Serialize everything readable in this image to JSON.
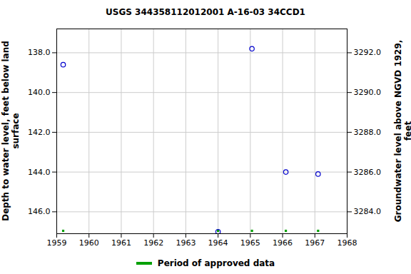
{
  "chart_data": {
    "type": "scatter",
    "title": "USGS 344358112012001 A-16-03 34CCD1",
    "ylabel": "Depth to water level, feet below land surface",
    "y2label": "Groundwater level above NGVD 1929, feet",
    "x": [
      1959.2,
      1964.0,
      1965.05,
      1966.1,
      1967.1
    ],
    "values": [
      138.6,
      147.0,
      137.8,
      144.0,
      144.1
    ],
    "color": "#0000cc",
    "marker": "open circle",
    "approved_periods": {
      "name": "Period of approved data",
      "color": "#00a000",
      "x": [
        1959.2,
        1964.0,
        1965.05,
        1966.1,
        1967.1
      ]
    },
    "xlim": [
      1959,
      1968
    ],
    "xticks": [
      1959,
      1960,
      1961,
      1962,
      1963,
      1964,
      1965,
      1966,
      1967,
      1968
    ],
    "ylim": [
      136.8,
      147.1
    ],
    "yticks": [
      {
        "value": 138,
        "label": "138.0"
      },
      {
        "value": 140,
        "label": "140.0"
      },
      {
        "value": 142,
        "label": "142.0"
      },
      {
        "value": 144,
        "label": "144.0"
      },
      {
        "value": 146,
        "label": "146.0"
      }
    ],
    "y2lim": [
      3293.2,
      3282.9
    ],
    "y2ticks": [
      {
        "value": 3284,
        "label": "3284.0"
      },
      {
        "value": 3286,
        "label": "3286.0"
      },
      {
        "value": 3288,
        "label": "3288.0"
      },
      {
        "value": 3290,
        "label": "3290.0"
      },
      {
        "value": 3292,
        "label": "3292.0"
      }
    ],
    "grid": true
  }
}
